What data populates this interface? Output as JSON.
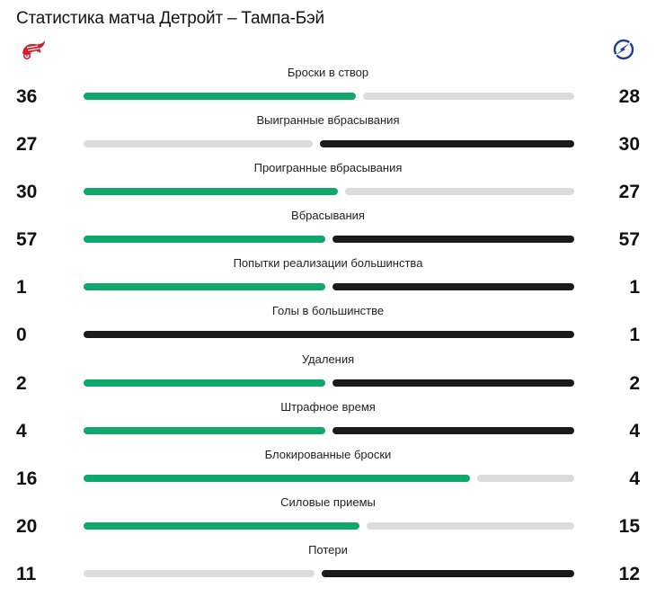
{
  "title": "Статистика матча Детройт – Тампа-Бэй",
  "teams": {
    "home": {
      "logo_icon": "red-wings-logo-icon",
      "color": "#0fa86b"
    },
    "away": {
      "logo_icon": "lightning-logo-icon",
      "color": "#1a1a1a"
    }
  },
  "colors": {
    "inactive": "#dcdcdc"
  },
  "stats": [
    {
      "label": "Броски в створ",
      "home": "36",
      "away": "28",
      "lead": "home"
    },
    {
      "label": "Выигранные вбрасывания",
      "home": "27",
      "away": "30",
      "lead": "away"
    },
    {
      "label": "Проигранные вбрасывания",
      "home": "30",
      "away": "27",
      "lead": "home"
    },
    {
      "label": "Вбрасывания",
      "home": "57",
      "away": "57",
      "lead": "both"
    },
    {
      "label": "Попытки реализации большинства",
      "home": "1",
      "away": "1",
      "lead": "both"
    },
    {
      "label": "Голы в большинстве",
      "home": "0",
      "away": "1",
      "lead": "away"
    },
    {
      "label": "Удаления",
      "home": "2",
      "away": "2",
      "lead": "both"
    },
    {
      "label": "Штрафное время",
      "home": "4",
      "away": "4",
      "lead": "both"
    },
    {
      "label": "Блокированные броски",
      "home": "16",
      "away": "4",
      "lead": "home"
    },
    {
      "label": "Силовые приемы",
      "home": "20",
      "away": "15",
      "lead": "home"
    },
    {
      "label": "Потери",
      "home": "11",
      "away": "12",
      "lead": "away"
    }
  ]
}
